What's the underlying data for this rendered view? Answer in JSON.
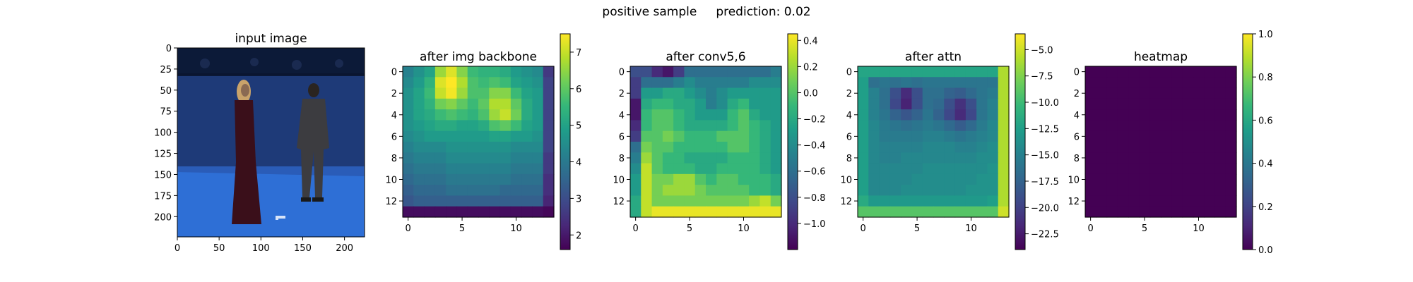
{
  "figure": {
    "suptitle": "positive sample     prediction: 0.02"
  },
  "colormap_stops": [
    "#440154",
    "#482878",
    "#3e4989",
    "#31688e",
    "#26828e",
    "#1f9e89",
    "#35b779",
    "#6ece58",
    "#b5de2b",
    "#fde725"
  ],
  "chart_data": [
    {
      "type": "image",
      "title": "input image",
      "description_of_content": "photo",
      "xticks": [
        "0",
        "50",
        "100",
        "150",
        "200"
      ],
      "xtick_values": [
        0,
        50,
        100,
        150,
        200
      ],
      "yticks": [
        "0",
        "25",
        "50",
        "75",
        "100",
        "125",
        "150",
        "175",
        "200"
      ],
      "ytick_values": [
        0,
        25,
        50,
        75,
        100,
        125,
        150,
        175,
        200
      ],
      "xlim": [
        0,
        224
      ],
      "ylim": [
        224,
        0
      ],
      "colors": {
        "wall": "#1e3a78",
        "floor": "#2e6fd6",
        "rig": "#0c1a38",
        "figure_left": "#3a0f1a",
        "figure_right": "#3c3c40",
        "hair": "#c9a36a"
      }
    },
    {
      "type": "heatmap",
      "title": "after img backbone",
      "xticks": [
        "0",
        "5",
        "10"
      ],
      "xtick_values": [
        0,
        5,
        10
      ],
      "yticks": [
        "0",
        "2",
        "4",
        "6",
        "8",
        "10",
        "12"
      ],
      "ytick_values": [
        0,
        2,
        4,
        6,
        8,
        10,
        12
      ],
      "grid_size": 14,
      "colorbar": {
        "vmin": 1.6,
        "vmax": 7.5,
        "ticks": [
          "2",
          "3",
          "4",
          "5",
          "6",
          "7"
        ],
        "tick_values": [
          2,
          3,
          4,
          5,
          6,
          7
        ]
      },
      "values": [
        [
          4.2,
          4.6,
          5.0,
          6.6,
          7.2,
          6.4,
          5.6,
          5.4,
          5.4,
          5.2,
          4.8,
          4.6,
          4.4,
          2.6
        ],
        [
          4.4,
          4.8,
          5.4,
          7.2,
          7.5,
          6.8,
          5.8,
          5.6,
          5.8,
          5.6,
          5.0,
          4.8,
          4.6,
          2.8
        ],
        [
          4.6,
          5.0,
          5.6,
          7.0,
          7.4,
          6.6,
          5.8,
          5.8,
          6.4,
          6.4,
          5.6,
          5.0,
          4.8,
          2.8
        ],
        [
          4.6,
          5.0,
          5.4,
          6.2,
          6.4,
          6.0,
          5.6,
          6.0,
          6.8,
          6.8,
          6.0,
          5.2,
          4.8,
          2.8
        ],
        [
          4.6,
          5.0,
          5.2,
          5.6,
          5.8,
          5.6,
          5.4,
          5.8,
          6.6,
          7.0,
          6.2,
          5.2,
          4.8,
          2.8
        ],
        [
          4.6,
          4.8,
          5.0,
          5.2,
          5.2,
          5.0,
          5.0,
          5.2,
          5.8,
          6.0,
          5.6,
          5.0,
          4.8,
          2.8
        ],
        [
          4.4,
          4.6,
          4.8,
          4.8,
          4.8,
          4.8,
          4.8,
          4.8,
          5.0,
          5.0,
          4.8,
          4.8,
          4.6,
          2.8
        ],
        [
          4.2,
          4.4,
          4.4,
          4.4,
          4.6,
          4.6,
          4.6,
          4.6,
          4.6,
          4.6,
          4.4,
          4.4,
          4.4,
          2.8
        ],
        [
          4.0,
          4.2,
          4.2,
          4.2,
          4.4,
          4.4,
          4.4,
          4.4,
          4.4,
          4.4,
          4.2,
          4.2,
          4.2,
          2.6
        ],
        [
          3.8,
          4.0,
          4.0,
          4.0,
          4.2,
          4.2,
          4.2,
          4.2,
          4.2,
          4.2,
          4.0,
          4.0,
          4.0,
          2.6
        ],
        [
          3.6,
          3.8,
          3.8,
          3.8,
          4.0,
          4.0,
          4.0,
          4.0,
          4.0,
          4.0,
          3.8,
          3.8,
          3.8,
          2.4
        ],
        [
          3.4,
          3.6,
          3.6,
          3.6,
          3.8,
          3.8,
          3.8,
          3.8,
          3.8,
          3.6,
          3.6,
          3.6,
          3.6,
          2.4
        ],
        [
          3.2,
          3.4,
          3.4,
          3.4,
          3.4,
          3.4,
          3.4,
          3.4,
          3.4,
          3.4,
          3.4,
          3.4,
          3.4,
          2.2
        ],
        [
          1.8,
          1.8,
          1.8,
          1.8,
          1.8,
          1.8,
          1.8,
          1.8,
          1.8,
          1.8,
          1.8,
          1.8,
          1.8,
          1.7
        ]
      ]
    },
    {
      "type": "heatmap",
      "title": "after conv5,6",
      "xticks": [
        "0",
        "5",
        "10"
      ],
      "xtick_values": [
        0,
        5,
        10
      ],
      "yticks": [
        "0",
        "2",
        "4",
        "6",
        "8",
        "10",
        "12"
      ],
      "ytick_values": [
        0,
        2,
        4,
        6,
        8,
        10,
        12
      ],
      "grid_size": 14,
      "colorbar": {
        "vmin": -1.2,
        "vmax": 0.45,
        "ticks": [
          "0.4",
          "0.2",
          "0.0",
          "−0.2",
          "−0.4",
          "−0.6",
          "−0.8",
          "−1.0"
        ],
        "tick_values": [
          0.4,
          0.2,
          0.0,
          -0.2,
          -0.4,
          -0.6,
          -0.8,
          -1.0
        ]
      },
      "values": [
        [
          -0.8,
          -0.8,
          -1.0,
          -1.1,
          -0.9,
          -0.6,
          -0.6,
          -0.6,
          -0.6,
          -0.6,
          -0.6,
          -0.6,
          -0.6,
          -0.5
        ],
        [
          -0.9,
          -0.6,
          -0.6,
          -0.6,
          -0.5,
          -0.4,
          -0.5,
          -0.5,
          -0.5,
          -0.5,
          -0.5,
          -0.4,
          -0.4,
          -0.4
        ],
        [
          -0.9,
          -0.3,
          -0.3,
          -0.2,
          -0.2,
          -0.3,
          -0.4,
          -0.5,
          -0.4,
          -0.3,
          -0.3,
          -0.3,
          -0.3,
          -0.3
        ],
        [
          -1.1,
          -0.2,
          -0.1,
          -0.1,
          -0.2,
          -0.2,
          -0.3,
          -0.5,
          -0.4,
          -0.2,
          -0.1,
          -0.3,
          -0.3,
          -0.3
        ],
        [
          -1.1,
          -0.1,
          0.0,
          0.0,
          -0.1,
          -0.2,
          -0.3,
          -0.3,
          -0.3,
          -0.1,
          0.0,
          -0.2,
          -0.3,
          -0.3
        ],
        [
          -1.0,
          -0.1,
          0.0,
          0.0,
          -0.1,
          -0.2,
          -0.2,
          -0.2,
          -0.2,
          -0.1,
          0.0,
          -0.1,
          -0.2,
          -0.3
        ],
        [
          -0.9,
          0.0,
          0.0,
          0.1,
          0.0,
          -0.1,
          -0.1,
          -0.1,
          0.0,
          0.0,
          0.0,
          -0.1,
          -0.2,
          -0.3
        ],
        [
          -0.6,
          0.1,
          0.0,
          0.0,
          -0.1,
          -0.1,
          -0.1,
          -0.1,
          -0.1,
          0.0,
          0.0,
          -0.1,
          -0.2,
          -0.3
        ],
        [
          -0.5,
          0.2,
          0.0,
          -0.1,
          -0.1,
          -0.2,
          -0.2,
          -0.2,
          -0.2,
          -0.1,
          -0.1,
          -0.1,
          -0.2,
          -0.3
        ],
        [
          -0.4,
          0.3,
          0.0,
          -0.1,
          -0.1,
          -0.1,
          -0.2,
          -0.2,
          -0.1,
          -0.1,
          -0.1,
          -0.1,
          -0.2,
          -0.3
        ],
        [
          -0.3,
          0.3,
          0.1,
          0.1,
          0.2,
          0.2,
          0.0,
          -0.1,
          0.0,
          0.0,
          -0.1,
          -0.1,
          -0.1,
          -0.2
        ],
        [
          -0.3,
          0.3,
          0.1,
          0.2,
          0.2,
          0.2,
          0.1,
          0.0,
          0.0,
          0.0,
          0.0,
          -0.1,
          -0.1,
          -0.2
        ],
        [
          -0.2,
          0.3,
          0.1,
          0.1,
          0.1,
          0.1,
          0.1,
          0.1,
          0.1,
          0.1,
          0.1,
          0.2,
          0.3,
          0.1
        ],
        [
          -0.2,
          0.3,
          0.4,
          0.4,
          0.4,
          0.4,
          0.4,
          0.4,
          0.4,
          0.4,
          0.4,
          0.4,
          0.4,
          0.4
        ]
      ]
    },
    {
      "type": "heatmap",
      "title": "after attn",
      "xticks": [
        "0",
        "5",
        "10"
      ],
      "xtick_values": [
        0,
        5,
        10
      ],
      "yticks": [
        "0",
        "2",
        "4",
        "6",
        "8",
        "10",
        "12"
      ],
      "ytick_values": [
        0,
        2,
        4,
        6,
        8,
        10,
        12
      ],
      "grid_size": 14,
      "colorbar": {
        "vmin": -24,
        "vmax": -3.5,
        "ticks": [
          "−5.0",
          "−7.5",
          "−10.0",
          "−12.5",
          "−15.0",
          "−17.5",
          "−20.0",
          "−22.5"
        ],
        "tick_values": [
          -5.0,
          -7.5,
          -10.0,
          -12.5,
          -15.0,
          -17.5,
          -20.0,
          -22.5
        ]
      },
      "values": [
        [
          -12.0,
          -12.0,
          -12.0,
          -12.0,
          -12.0,
          -12.0,
          -12.0,
          -12.0,
          -12.0,
          -12.0,
          -12.0,
          -12.0,
          -12.0,
          -6.0
        ],
        [
          -12.5,
          -16.5,
          -16.0,
          -16.5,
          -16.0,
          -16.5,
          -16.0,
          -16.0,
          -16.0,
          -16.0,
          -16.0,
          -16.0,
          -16.0,
          -6.0
        ],
        [
          -12.5,
          -15.0,
          -16.5,
          -19.0,
          -21.5,
          -19.0,
          -16.5,
          -16.5,
          -17.5,
          -18.0,
          -17.0,
          -16.0,
          -15.5,
          -6.0
        ],
        [
          -12.5,
          -15.0,
          -16.5,
          -19.5,
          -22.0,
          -19.0,
          -16.5,
          -17.0,
          -19.0,
          -21.0,
          -19.0,
          -16.0,
          -15.0,
          -6.0
        ],
        [
          -12.5,
          -15.0,
          -16.0,
          -17.5,
          -18.5,
          -17.5,
          -16.0,
          -17.5,
          -19.5,
          -21.5,
          -19.5,
          -16.0,
          -15.0,
          -6.0
        ],
        [
          -12.5,
          -14.5,
          -15.5,
          -16.0,
          -16.5,
          -16.0,
          -15.5,
          -16.0,
          -17.0,
          -18.0,
          -17.0,
          -15.5,
          -14.5,
          -6.0
        ],
        [
          -12.5,
          -14.5,
          -15.5,
          -15.5,
          -15.5,
          -15.5,
          -15.0,
          -15.0,
          -15.5,
          -16.0,
          -15.5,
          -15.0,
          -14.5,
          -6.0
        ],
        [
          -12.5,
          -14.5,
          -15.0,
          -15.0,
          -15.0,
          -15.0,
          -14.5,
          -14.5,
          -14.5,
          -15.0,
          -15.0,
          -14.5,
          -14.0,
          -6.0
        ],
        [
          -12.5,
          -14.5,
          -15.0,
          -15.0,
          -14.5,
          -14.5,
          -14.5,
          -14.5,
          -14.5,
          -14.5,
          -14.5,
          -14.0,
          -14.0,
          -6.0
        ],
        [
          -12.5,
          -14.5,
          -14.5,
          -14.5,
          -14.5,
          -14.5,
          -14.0,
          -14.0,
          -14.0,
          -14.0,
          -14.0,
          -14.0,
          -13.5,
          -6.0
        ],
        [
          -12.5,
          -14.5,
          -14.5,
          -14.5,
          -14.5,
          -14.0,
          -14.0,
          -14.0,
          -14.0,
          -14.0,
          -14.0,
          -13.5,
          -13.5,
          -6.0
        ],
        [
          -12.5,
          -14.5,
          -14.5,
          -14.5,
          -14.0,
          -14.0,
          -14.0,
          -14.0,
          -14.0,
          -14.0,
          -13.5,
          -13.5,
          -13.5,
          -6.0
        ],
        [
          -11.5,
          -13.0,
          -13.0,
          -13.0,
          -13.0,
          -13.0,
          -13.0,
          -13.0,
          -13.0,
          -13.0,
          -13.0,
          -13.0,
          -12.5,
          -6.0
        ],
        [
          -9.0,
          -9.0,
          -9.0,
          -9.0,
          -9.0,
          -9.0,
          -9.0,
          -9.0,
          -9.0,
          -9.0,
          -9.0,
          -9.0,
          -9.0,
          -5.0
        ]
      ]
    },
    {
      "type": "heatmap",
      "title": "heatmap",
      "xticks": [
        "0",
        "5",
        "10"
      ],
      "xtick_values": [
        0,
        5,
        10
      ],
      "yticks": [
        "0",
        "2",
        "4",
        "6",
        "8",
        "10",
        "12"
      ],
      "ytick_values": [
        0,
        2,
        4,
        6,
        8,
        10,
        12
      ],
      "grid_size": 14,
      "colorbar": {
        "vmin": 0.0,
        "vmax": 1.0,
        "ticks": [
          "1.0",
          "0.8",
          "0.6",
          "0.4",
          "0.2",
          "0.0"
        ],
        "tick_values": [
          1.0,
          0.8,
          0.6,
          0.4,
          0.2,
          0.0
        ]
      },
      "uniform_value": 0.0
    }
  ]
}
